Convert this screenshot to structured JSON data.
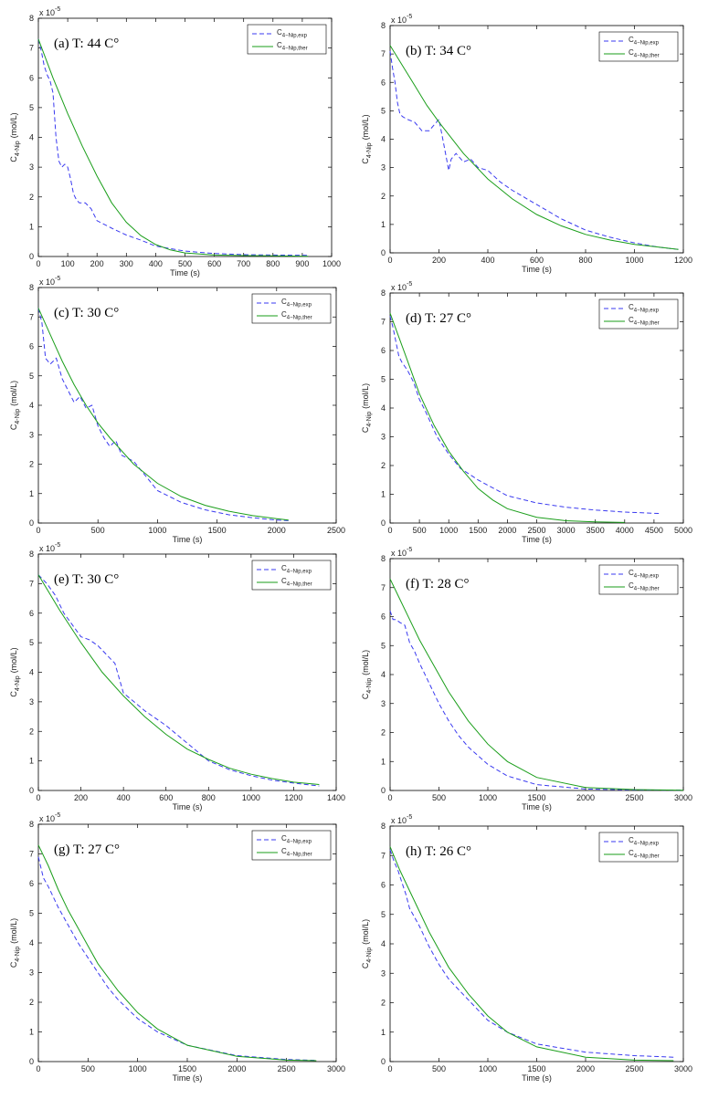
{
  "chart_data": [
    {
      "type": "line",
      "panel_title": "(a) T: 44 C°",
      "xlabel": "Time (s)",
      "ylabel_main": "C",
      "ylabel_sub": "4-Nip",
      "ylabel_unit": "(mol/L)",
      "y_exponent_base": "x 10",
      "y_exponent_power": "-5",
      "xlim": [
        0,
        1000
      ],
      "ylim": [
        0,
        8
      ],
      "xticks": [
        0,
        100,
        200,
        300,
        400,
        500,
        600,
        700,
        800,
        900,
        1000
      ],
      "yticks": [
        0,
        1,
        2,
        3,
        4,
        5,
        6,
        7,
        8
      ],
      "legend_position": "top-right",
      "series": [
        {
          "name_main": "C",
          "name_sub": "4−Nip,exp",
          "color": "#3a3af0",
          "style": "dashed",
          "x": [
            0,
            10,
            20,
            30,
            40,
            50,
            60,
            70,
            80,
            90,
            100,
            110,
            120,
            130,
            140,
            160,
            180,
            200,
            250,
            300,
            350,
            400,
            500,
            600,
            700,
            800,
            920
          ],
          "y": [
            7.3,
            6.9,
            6.4,
            6.1,
            5.9,
            5.5,
            4.0,
            3.2,
            3.0,
            3.1,
            3.0,
            2.6,
            2.1,
            1.9,
            1.8,
            1.8,
            1.6,
            1.2,
            0.95,
            0.72,
            0.55,
            0.35,
            0.18,
            0.1,
            0.06,
            0.05,
            0.04
          ]
        },
        {
          "name_main": "C",
          "name_sub": "4−Nip,ther",
          "color": "#1a9e1a",
          "style": "solid",
          "x": [
            0,
            50,
            100,
            150,
            200,
            250,
            300,
            350,
            400,
            450,
            500,
            600,
            700,
            800,
            920
          ],
          "y": [
            7.3,
            6.0,
            4.8,
            3.7,
            2.7,
            1.8,
            1.15,
            0.7,
            0.4,
            0.22,
            0.12,
            0.05,
            0.03,
            0.02,
            0.01
          ]
        }
      ]
    },
    {
      "type": "line",
      "panel_title": "(b) T: 34 C°",
      "xlabel": "Time (s)",
      "ylabel_main": "C",
      "ylabel_sub": "4-Nip",
      "ylabel_unit": "(mol/L)",
      "y_exponent_base": "x 10",
      "y_exponent_power": "-5",
      "xlim": [
        0,
        1200
      ],
      "ylim": [
        0,
        8
      ],
      "xticks": [
        0,
        200,
        400,
        600,
        800,
        1000,
        1200
      ],
      "yticks": [
        0,
        1,
        2,
        3,
        4,
        5,
        6,
        7,
        8
      ],
      "legend_position": "top-right",
      "series": [
        {
          "name_main": "C",
          "name_sub": "4−Nip,exp",
          "color": "#3a3af0",
          "style": "dashed",
          "x": [
            0,
            10,
            20,
            30,
            40,
            50,
            70,
            100,
            130,
            160,
            180,
            200,
            220,
            240,
            250,
            270,
            300,
            330,
            360,
            400,
            450,
            500,
            600,
            700,
            800,
            900,
            1000,
            1100,
            1180
          ],
          "y": [
            7.1,
            6.5,
            6.0,
            5.3,
            4.9,
            4.8,
            4.7,
            4.6,
            4.3,
            4.3,
            4.5,
            4.7,
            3.8,
            2.9,
            3.3,
            3.5,
            3.2,
            3.3,
            3.0,
            2.9,
            2.5,
            2.2,
            1.7,
            1.2,
            0.8,
            0.55,
            0.35,
            0.2,
            0.12
          ]
        },
        {
          "name_main": "C",
          "name_sub": "4−Nip,ther",
          "color": "#1a9e1a",
          "style": "solid",
          "x": [
            0,
            50,
            100,
            150,
            200,
            300,
            400,
            500,
            600,
            700,
            800,
            900,
            1000,
            1100,
            1180
          ],
          "y": [
            7.3,
            6.6,
            5.9,
            5.2,
            4.6,
            3.5,
            2.6,
            1.9,
            1.35,
            0.95,
            0.65,
            0.45,
            0.3,
            0.2,
            0.12
          ]
        }
      ]
    },
    {
      "type": "line",
      "panel_title": "(c) T: 30 C°",
      "xlabel": "Time (s)",
      "ylabel_main": "C",
      "ylabel_sub": "4-Nip",
      "ylabel_unit": "(mol/L)",
      "y_exponent_base": "x 10",
      "y_exponent_power": "-5",
      "xlim": [
        0,
        2500
      ],
      "ylim": [
        0,
        8
      ],
      "xticks": [
        0,
        500,
        1000,
        1500,
        2000,
        2500
      ],
      "yticks": [
        0,
        1,
        2,
        3,
        4,
        5,
        6,
        7,
        8
      ],
      "legend_position": "top-right",
      "series": [
        {
          "name_main": "C",
          "name_sub": "4−Nip,exp",
          "color": "#3a3af0",
          "style": "dashed",
          "x": [
            0,
            30,
            60,
            100,
            150,
            200,
            250,
            300,
            350,
            400,
            450,
            500,
            550,
            600,
            650,
            700,
            800,
            900,
            1000,
            1200,
            1400,
            1600,
            1800,
            2000,
            2100
          ],
          "y": [
            7.3,
            6.8,
            5.6,
            5.4,
            5.6,
            4.9,
            4.5,
            4.1,
            4.3,
            3.9,
            4.0,
            3.3,
            2.9,
            2.6,
            2.8,
            2.3,
            2.1,
            1.6,
            1.1,
            0.7,
            0.45,
            0.28,
            0.18,
            0.1,
            0.08
          ]
        },
        {
          "name_main": "C",
          "name_sub": "4−Nip,ther",
          "color": "#1a9e1a",
          "style": "solid",
          "x": [
            0,
            100,
            200,
            300,
            400,
            500,
            600,
            800,
            1000,
            1200,
            1400,
            1600,
            1800,
            2000,
            2100
          ],
          "y": [
            7.3,
            6.4,
            5.5,
            4.7,
            4.0,
            3.4,
            2.9,
            2.0,
            1.35,
            0.9,
            0.6,
            0.4,
            0.25,
            0.15,
            0.1
          ]
        }
      ]
    },
    {
      "type": "line",
      "panel_title": "(d) T: 27 C°",
      "xlabel": "Time (s)",
      "ylabel_main": "C",
      "ylabel_sub": "4-Nip",
      "ylabel_unit": "(mol/L)",
      "y_exponent_base": "x 10",
      "y_exponent_power": "-5",
      "xlim": [
        0,
        5000
      ],
      "ylim": [
        0,
        8
      ],
      "xticks": [
        0,
        500,
        1000,
        1500,
        2000,
        2500,
        3000,
        3500,
        4000,
        4500,
        5000
      ],
      "yticks": [
        0,
        1,
        2,
        3,
        4,
        5,
        6,
        7,
        8
      ],
      "legend_position": "top-right",
      "series": [
        {
          "name_main": "C",
          "name_sub": "4−Nip,exp",
          "color": "#3a3af0",
          "style": "dashed",
          "x": [
            0,
            50,
            100,
            150,
            200,
            300,
            400,
            500,
            600,
            800,
            1000,
            1200,
            1500,
            2000,
            2500,
            3000,
            3500,
            4000,
            4600
          ],
          "y": [
            7.2,
            6.8,
            6.3,
            5.8,
            5.6,
            5.3,
            4.9,
            4.3,
            3.9,
            3.0,
            2.4,
            1.9,
            1.5,
            0.95,
            0.7,
            0.55,
            0.45,
            0.38,
            0.33
          ]
        },
        {
          "name_main": "C",
          "name_sub": "4−Nip,ther",
          "color": "#1a9e1a",
          "style": "solid",
          "x": [
            0,
            250,
            500,
            750,
            1000,
            1250,
            1500,
            1750,
            2000,
            2500,
            3000,
            3500,
            4000
          ],
          "y": [
            7.3,
            5.9,
            4.5,
            3.4,
            2.5,
            1.8,
            1.2,
            0.8,
            0.5,
            0.2,
            0.08,
            0.04,
            0.02
          ]
        }
      ]
    },
    {
      "type": "line",
      "panel_title": "(e) T: 30 C°",
      "xlabel": "Time (s)",
      "ylabel_main": "C",
      "ylabel_sub": "4-Nip",
      "ylabel_unit": "(mol/L)",
      "y_exponent_base": "x 10",
      "y_exponent_power": "-5",
      "xlim": [
        0,
        1400
      ],
      "ylim": [
        0,
        8
      ],
      "xticks": [
        0,
        200,
        400,
        600,
        800,
        1000,
        1200,
        1400
      ],
      "yticks": [
        0,
        1,
        2,
        3,
        4,
        5,
        6,
        7,
        8
      ],
      "legend_position": "top-right",
      "series": [
        {
          "name_main": "C",
          "name_sub": "4−Nip,exp",
          "color": "#3a3af0",
          "style": "dashed",
          "x": [
            0,
            40,
            80,
            120,
            160,
            200,
            240,
            280,
            320,
            360,
            400,
            450,
            500,
            600,
            700,
            800,
            900,
            1000,
            1100,
            1200,
            1320
          ],
          "y": [
            7.3,
            7.0,
            6.6,
            6.0,
            5.6,
            5.2,
            5.1,
            4.9,
            4.6,
            4.3,
            3.3,
            3.0,
            2.7,
            2.2,
            1.6,
            1.0,
            0.7,
            0.5,
            0.35,
            0.25,
            0.15
          ]
        },
        {
          "name_main": "C",
          "name_sub": "4−Nip,ther",
          "color": "#1a9e1a",
          "style": "solid",
          "x": [
            0,
            100,
            200,
            300,
            400,
            500,
            600,
            700,
            800,
            900,
            1000,
            1100,
            1200,
            1320
          ],
          "y": [
            7.3,
            6.1,
            5.0,
            4.0,
            3.2,
            2.5,
            1.9,
            1.4,
            1.05,
            0.75,
            0.55,
            0.4,
            0.28,
            0.2
          ]
        }
      ]
    },
    {
      "type": "line",
      "panel_title": "(f) T: 28 C°",
      "xlabel": "Time (s)",
      "ylabel_main": "C",
      "ylabel_sub": "4-Nip",
      "ylabel_unit": "(mol/L)",
      "y_exponent_base": "x 10",
      "y_exponent_power": "-5",
      "xlim": [
        0,
        3000
      ],
      "ylim": [
        0,
        8
      ],
      "xticks": [
        0,
        500,
        1000,
        1500,
        2000,
        2500,
        3000
      ],
      "yticks": [
        0,
        1,
        2,
        3,
        4,
        5,
        6,
        7,
        8
      ],
      "legend_position": "top-right",
      "series": [
        {
          "name_main": "C",
          "name_sub": "4−Nip,exp",
          "color": "#3a3af0",
          "style": "dashed",
          "x": [
            0,
            30,
            60,
            100,
            150,
            200,
            250,
            300,
            400,
            500,
            600,
            700,
            800,
            1000,
            1200,
            1500,
            2000,
            2500,
            3000
          ],
          "y": [
            6.2,
            5.9,
            5.9,
            5.8,
            5.7,
            5.1,
            4.8,
            4.4,
            3.7,
            3.0,
            2.4,
            1.9,
            1.5,
            0.9,
            0.5,
            0.2,
            0.05,
            0.02,
            0.01
          ]
        },
        {
          "name_main": "C",
          "name_sub": "4−Nip,ther",
          "color": "#1a9e1a",
          "style": "solid",
          "x": [
            0,
            100,
            200,
            300,
            400,
            500,
            600,
            800,
            1000,
            1200,
            1500,
            2000,
            2500,
            3000
          ],
          "y": [
            7.3,
            6.6,
            5.9,
            5.2,
            4.6,
            4.0,
            3.4,
            2.4,
            1.6,
            1.0,
            0.45,
            0.1,
            0.03,
            0.01
          ]
        }
      ]
    },
    {
      "type": "line",
      "panel_title": "(g) T: 27 C°",
      "xlabel": "Time (s)",
      "ylabel_main": "C",
      "ylabel_sub": "4-Nip",
      "ylabel_unit": "(mol/L)",
      "y_exponent_base": "x 10",
      "y_exponent_power": "-5",
      "xlim": [
        0,
        3000
      ],
      "ylim": [
        0,
        8
      ],
      "xticks": [
        0,
        500,
        1000,
        1500,
        2000,
        2500,
        3000
      ],
      "yticks": [
        0,
        1,
        2,
        3,
        4,
        5,
        6,
        7,
        8
      ],
      "legend_position": "top-right",
      "series": [
        {
          "name_main": "C",
          "name_sub": "4−Nip,exp",
          "color": "#3a3af0",
          "style": "dashed",
          "x": [
            0,
            50,
            100,
            200,
            300,
            400,
            500,
            600,
            700,
            800,
            1000,
            1200,
            1500,
            2000,
            2500,
            2800
          ],
          "y": [
            6.9,
            6.2,
            5.9,
            5.2,
            4.6,
            4.0,
            3.5,
            3.0,
            2.5,
            2.1,
            1.45,
            1.0,
            0.55,
            0.2,
            0.07,
            0.04
          ]
        },
        {
          "name_main": "C",
          "name_sub": "4−Nip,ther",
          "color": "#1a9e1a",
          "style": "solid",
          "x": [
            0,
            100,
            200,
            300,
            400,
            500,
            600,
            800,
            1000,
            1200,
            1500,
            2000,
            2500,
            2800
          ],
          "y": [
            7.3,
            6.6,
            5.8,
            5.1,
            4.5,
            3.9,
            3.3,
            2.4,
            1.65,
            1.1,
            0.55,
            0.18,
            0.05,
            0.03
          ]
        }
      ]
    },
    {
      "type": "line",
      "panel_title": "(h) T: 26 C°",
      "xlabel": "Time (s)",
      "ylabel_main": "C",
      "ylabel_sub": "4-Nip",
      "ylabel_unit": "(mol/L)",
      "y_exponent_base": "x 10",
      "y_exponent_power": "-5",
      "xlim": [
        0,
        3000
      ],
      "ylim": [
        0,
        8
      ],
      "xticks": [
        0,
        500,
        1000,
        1500,
        2000,
        2500,
        3000
      ],
      "yticks": [
        0,
        1,
        2,
        3,
        4,
        5,
        6,
        7,
        8
      ],
      "legend_position": "top-right",
      "series": [
        {
          "name_main": "C",
          "name_sub": "4−Nip,exp",
          "color": "#3a3af0",
          "style": "dashed",
          "x": [
            0,
            40,
            80,
            120,
            160,
            200,
            250,
            300,
            400,
            500,
            600,
            800,
            1000,
            1200,
            1500,
            2000,
            2500,
            2900
          ],
          "y": [
            7.2,
            6.8,
            6.5,
            6.1,
            5.7,
            5.2,
            4.9,
            4.6,
            3.9,
            3.3,
            2.8,
            2.1,
            1.4,
            1.0,
            0.6,
            0.32,
            0.2,
            0.15
          ]
        },
        {
          "name_main": "C",
          "name_sub": "4−Nip,ther",
          "color": "#1a9e1a",
          "style": "solid",
          "x": [
            0,
            100,
            200,
            300,
            400,
            500,
            600,
            800,
            1000,
            1200,
            1500,
            2000,
            2500,
            2900
          ],
          "y": [
            7.3,
            6.5,
            5.8,
            5.1,
            4.4,
            3.8,
            3.2,
            2.3,
            1.55,
            1.0,
            0.5,
            0.15,
            0.05,
            0.03
          ]
        }
      ]
    }
  ]
}
